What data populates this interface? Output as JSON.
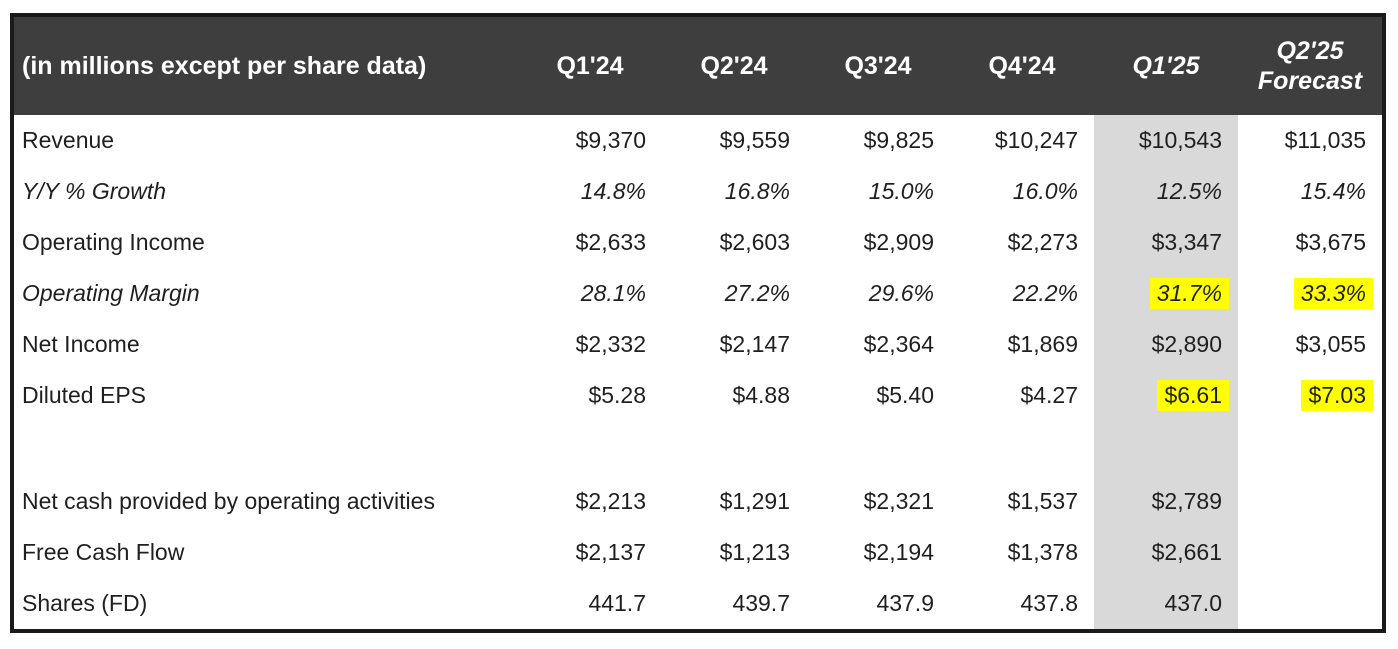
{
  "colors": {
    "header_bg": "#3e3e3e",
    "header_text": "#ffffff",
    "shaded_column": "#d9d9d9",
    "highlight_yellow": "#ffff00",
    "border": "#1a1a1a",
    "text": "#1f1f1f"
  },
  "table": {
    "unit_note": "(in millions except per share data)",
    "shaded_column_index": 4,
    "columns": [
      {
        "lines": [
          "Q1'24"
        ],
        "italic": false,
        "shaded": false
      },
      {
        "lines": [
          "Q2'24"
        ],
        "italic": false,
        "shaded": false
      },
      {
        "lines": [
          "Q3'24"
        ],
        "italic": false,
        "shaded": false
      },
      {
        "lines": [
          "Q4'24"
        ],
        "italic": false,
        "shaded": false
      },
      {
        "lines": [
          "Q1'25"
        ],
        "italic": true,
        "shaded": true
      },
      {
        "lines": [
          "Q2'25",
          "Forecast"
        ],
        "italic": true,
        "shaded": false
      }
    ],
    "rows": [
      {
        "label": "Revenue",
        "italic": false,
        "spacer": false,
        "highlights": [],
        "values": [
          "$9,370",
          "$9,559",
          "$9,825",
          "$10,247",
          "$10,543",
          "$11,035"
        ]
      },
      {
        "label": "Y/Y % Growth",
        "italic": true,
        "spacer": false,
        "highlights": [],
        "values": [
          "14.8%",
          "16.8%",
          "15.0%",
          "16.0%",
          "12.5%",
          "15.4%"
        ]
      },
      {
        "label": "Operating Income",
        "italic": false,
        "spacer": false,
        "highlights": [],
        "values": [
          "$2,633",
          "$2,603",
          "$2,909",
          "$2,273",
          "$3,347",
          "$3,675"
        ]
      },
      {
        "label": "Operating Margin",
        "italic": true,
        "spacer": false,
        "highlights": [
          4,
          5
        ],
        "values": [
          "28.1%",
          "27.2%",
          "29.6%",
          "22.2%",
          "31.7%",
          "33.3%"
        ]
      },
      {
        "label": "Net Income",
        "italic": false,
        "spacer": false,
        "highlights": [],
        "values": [
          "$2,332",
          "$2,147",
          "$2,364",
          "$1,869",
          "$2,890",
          "$3,055"
        ]
      },
      {
        "label": "Diluted EPS",
        "italic": false,
        "spacer": false,
        "highlights": [
          4,
          5
        ],
        "values": [
          "$5.28",
          "$4.88",
          "$5.40",
          "$4.27",
          "$6.61",
          "$7.03"
        ]
      },
      {
        "label": "",
        "italic": false,
        "spacer": true,
        "highlights": [],
        "values": [
          "",
          "",
          "",
          "",
          "",
          ""
        ]
      },
      {
        "label": "Net cash provided by operating activities",
        "italic": false,
        "spacer": false,
        "highlights": [],
        "values": [
          "$2,213",
          "$1,291",
          "$2,321",
          "$1,537",
          "$2,789",
          ""
        ]
      },
      {
        "label": "Free Cash Flow",
        "italic": false,
        "spacer": false,
        "highlights": [],
        "values": [
          "$2,137",
          "$1,213",
          "$2,194",
          "$1,378",
          "$2,661",
          ""
        ]
      },
      {
        "label": "Shares (FD)",
        "italic": false,
        "spacer": false,
        "highlights": [],
        "values": [
          "441.7",
          "439.7",
          "437.9",
          "437.8",
          "437.0",
          ""
        ]
      }
    ]
  },
  "chart_data": {
    "type": "table",
    "title": "(in millions except per share data)",
    "columns": [
      "Metric",
      "Q1'24",
      "Q2'24",
      "Q3'24",
      "Q4'24",
      "Q1'25",
      "Q2'25 Forecast"
    ],
    "rows": [
      [
        "Revenue",
        "$9,370",
        "$9,559",
        "$9,825",
        "$10,247",
        "$10,543",
        "$11,035"
      ],
      [
        "Y/Y % Growth",
        "14.8%",
        "16.8%",
        "15.0%",
        "16.0%",
        "12.5%",
        "15.4%"
      ],
      [
        "Operating Income",
        "$2,633",
        "$2,603",
        "$2,909",
        "$2,273",
        "$3,347",
        "$3,675"
      ],
      [
        "Operating Margin",
        "28.1%",
        "27.2%",
        "29.6%",
        "22.2%",
        "31.7%",
        "33.3%"
      ],
      [
        "Net Income",
        "$2,332",
        "$2,147",
        "$2,364",
        "$1,869",
        "$2,890",
        "$3,055"
      ],
      [
        "Diluted EPS",
        "$5.28",
        "$4.88",
        "$5.40",
        "$4.27",
        "$6.61",
        "$7.03"
      ],
      [
        "Net cash provided by operating activities",
        "$2,213",
        "$1,291",
        "$2,321",
        "$1,537",
        "$2,789",
        ""
      ],
      [
        "Free Cash Flow",
        "$2,137",
        "$1,213",
        "$2,194",
        "$1,378",
        "$2,661",
        ""
      ],
      [
        "Shares (FD)",
        "441.7",
        "439.7",
        "437.9",
        "437.8",
        "437.0",
        ""
      ]
    ],
    "layout_hints": {
      "shaded_column": "Q1'25",
      "highlighted_cells": [
        "Operating Margin Q1'25",
        "Operating Margin Q2'25 Forecast",
        "Diluted EPS Q1'25",
        "Diluted EPS Q2'25 Forecast"
      ],
      "header_style": "dark band, white bold text",
      "forecast_columns_italic": [
        "Q1'25",
        "Q2'25 Forecast"
      ]
    }
  }
}
